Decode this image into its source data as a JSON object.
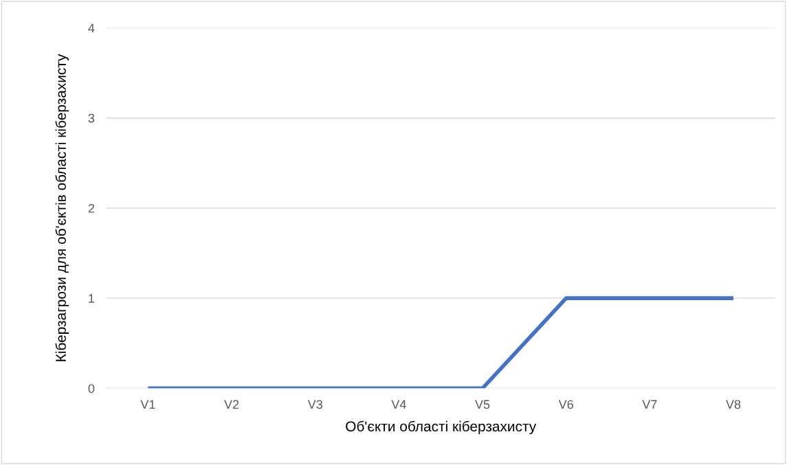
{
  "chart_data": {
    "type": "line",
    "xlabel": "Об'єкти області кіберзахисту",
    "ylabel": "Кіберзагрози для об'єктів області кіберзахисту",
    "categories": [
      "V1",
      "V2",
      "V3",
      "V4",
      "V5",
      "V6",
      "V7",
      "V8"
    ],
    "series": [
      {
        "color": "#4472c4",
        "values": [
          0,
          0,
          0,
          0,
          0,
          1,
          1,
          1
        ]
      }
    ],
    "ylim": [
      0,
      4
    ],
    "yticks": [
      0,
      1,
      2,
      3,
      4
    ],
    "grid": "y",
    "marker": "none",
    "line_style": "solid"
  }
}
